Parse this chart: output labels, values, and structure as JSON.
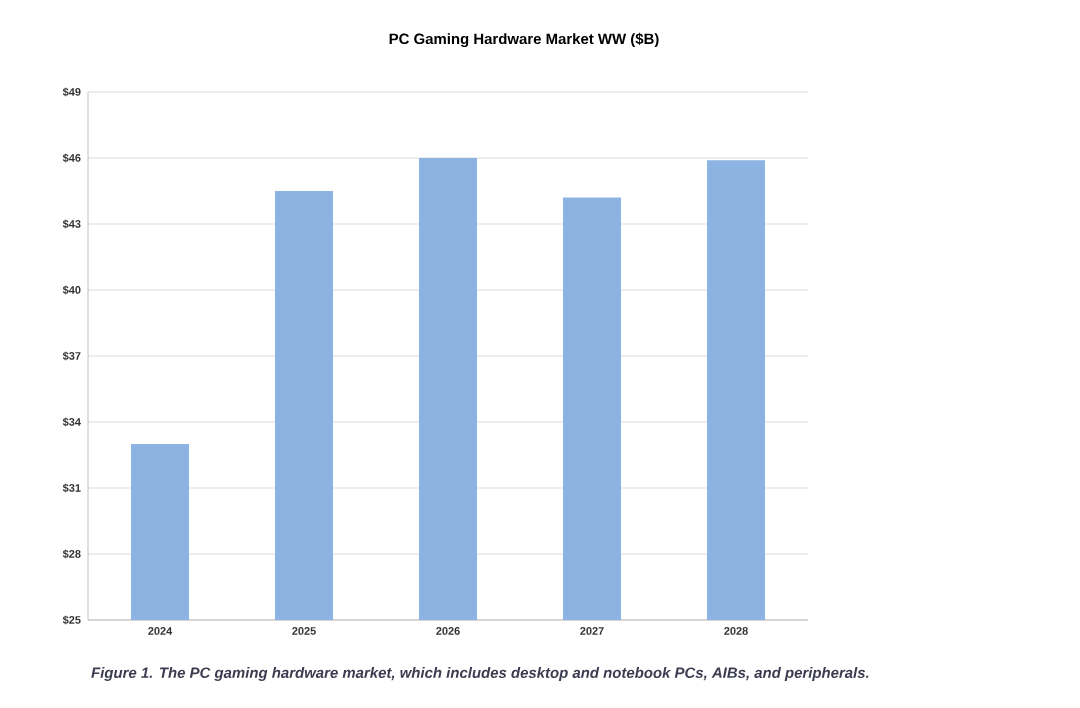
{
  "chart_data": {
    "type": "bar",
    "title": "PC Gaming  Hardware Market WW ($B)",
    "categories": [
      "2024",
      "2025",
      "2026",
      "2027",
      "2028"
    ],
    "values": [
      33.0,
      44.5,
      46.0,
      44.2,
      45.9
    ],
    "color": "#8db3e2",
    "ylim": [
      25,
      49
    ],
    "yticks": [
      {
        "value": 25,
        "label": "$25"
      },
      {
        "value": 28,
        "label": "$28"
      },
      {
        "value": 31,
        "label": "$31"
      },
      {
        "value": 34,
        "label": "$34"
      },
      {
        "value": 37,
        "label": "$37"
      },
      {
        "value": 40,
        "label": "$40"
      },
      {
        "value": 43,
        "label": "$43"
      },
      {
        "value": 46,
        "label": "$46"
      },
      {
        "value": 49,
        "label": "$49"
      }
    ],
    "grid": "y",
    "annotations": [
      "Figure 1. The PC gaming hardware market, which includes desktop and notebook PCs, AIBs, and peripherals."
    ]
  }
}
